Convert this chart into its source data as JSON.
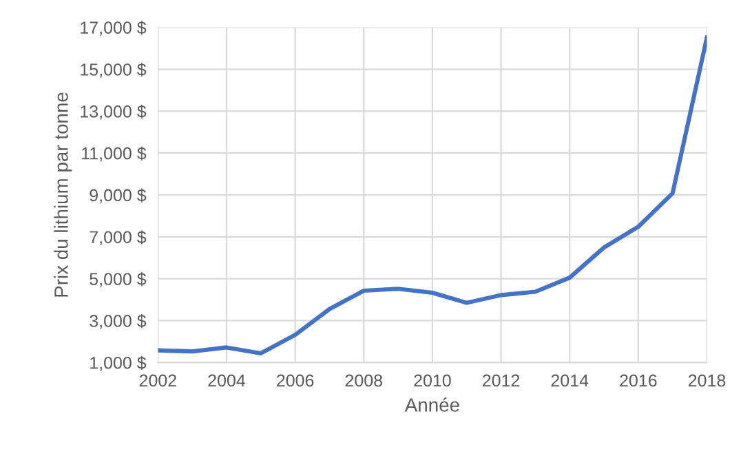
{
  "chart_data": {
    "type": "line",
    "xlabel": "Année",
    "ylabel": "Prix du lithium par tonne",
    "x": [
      2002,
      2003,
      2004,
      2005,
      2006,
      2007,
      2008,
      2009,
      2010,
      2011,
      2012,
      2013,
      2014,
      2015,
      2016,
      2017,
      2018
    ],
    "series": [
      {
        "color": "#4472c4",
        "values": [
          1580,
          1530,
          1720,
          1440,
          2320,
          3550,
          4430,
          4520,
          4330,
          3850,
          4220,
          4380,
          5050,
          6490,
          7480,
          9080,
          16510
        ]
      }
    ],
    "xlim": [
      2002,
      2018
    ],
    "xticks": [
      2002,
      2004,
      2006,
      2008,
      2010,
      2012,
      2014,
      2016,
      2018
    ],
    "ylim": [
      1000,
      17000
    ],
    "yticks": [
      {
        "value": 1000,
        "label": "1,000 $"
      },
      {
        "value": 3000,
        "label": "3,000 $"
      },
      {
        "value": 5000,
        "label": "5,000 $"
      },
      {
        "value": 7000,
        "label": "7,000 $"
      },
      {
        "value": 9000,
        "label": "9,000 $"
      },
      {
        "value": 11000,
        "label": "11,000 $"
      },
      {
        "value": 13000,
        "label": "13,000 $"
      },
      {
        "value": 15000,
        "label": "15,000 $"
      },
      {
        "value": 17000,
        "label": "17,000 $"
      }
    ],
    "grid": true,
    "legend": false,
    "marker": "none",
    "line_style": "solid"
  }
}
